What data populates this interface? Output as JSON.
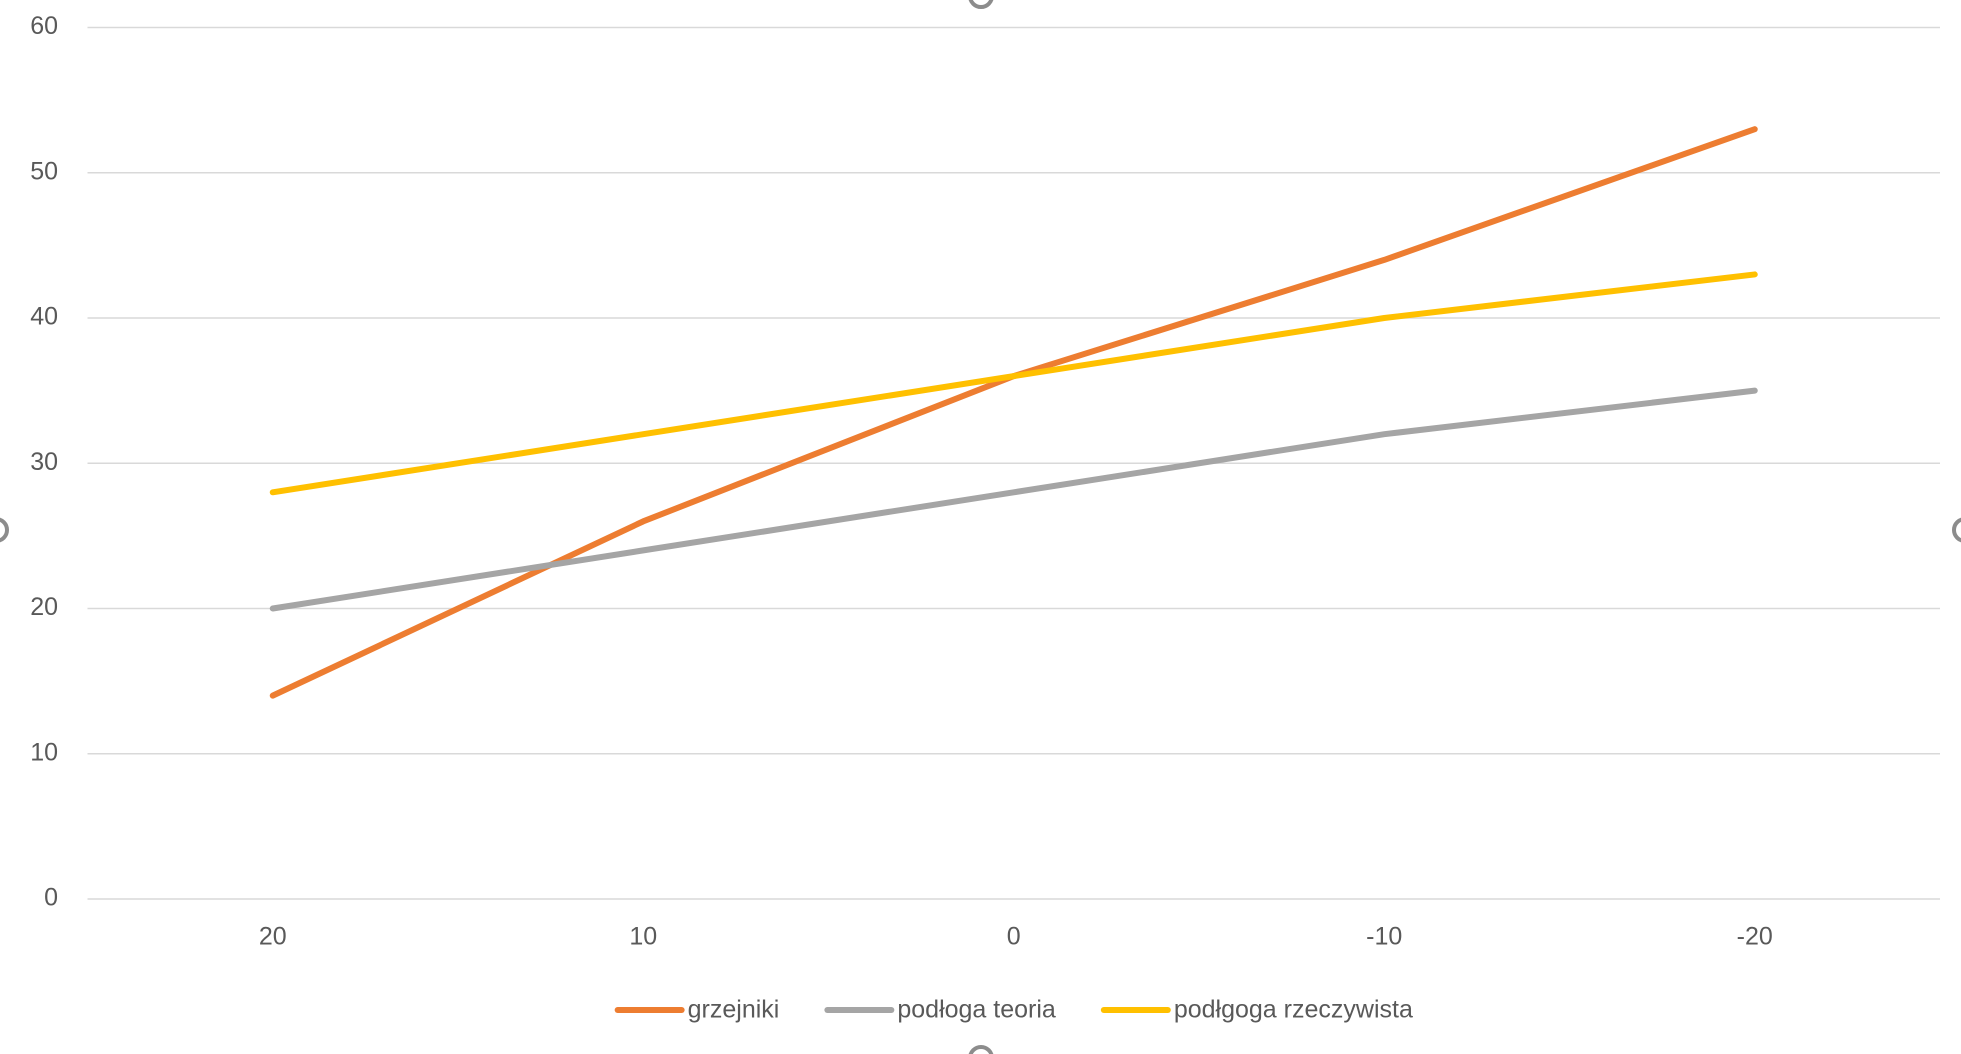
{
  "chart_data": {
    "type": "line",
    "categories": [
      "20",
      "10",
      "0",
      "-10",
      "-20"
    ],
    "series": [
      {
        "name": "grzejniki",
        "color": "#ED7D31",
        "values": [
          14,
          26,
          36,
          44,
          53
        ]
      },
      {
        "name": "podłoga teoria",
        "color": "#A5A5A5",
        "values": [
          20,
          24,
          28,
          32,
          35
        ]
      },
      {
        "name": "podłgoga rzeczywista",
        "color": "#FFC000",
        "values": [
          28,
          32,
          36,
          40,
          43
        ]
      }
    ],
    "ylim": [
      0,
      60
    ],
    "yticks": [
      0,
      10,
      20,
      30,
      40,
      50,
      60
    ],
    "grid": true,
    "legend": "bottom"
  }
}
